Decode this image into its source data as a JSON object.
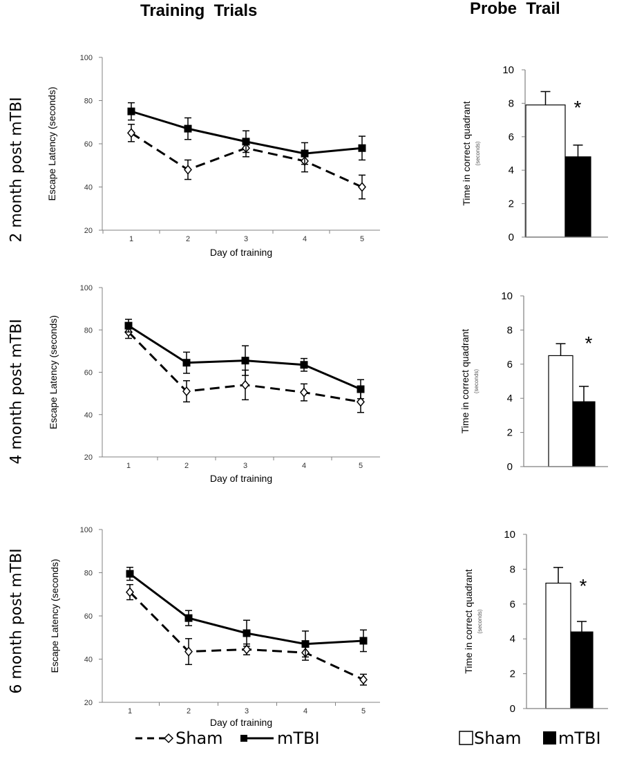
{
  "headers": {
    "training": "Training  Trials",
    "probe": "Probe  Trail"
  },
  "row_labels": [
    "2 month post mTBI",
    "4 month post mTBI",
    "6 month post mTBI"
  ],
  "legend_line": {
    "sham": "Sham",
    "mtbi": "mTBI"
  },
  "legend_bar": {
    "sham": "Sham",
    "mtbi": "mTBI"
  },
  "colors": {
    "sham_bar": "#ffffff",
    "mtbi_bar": "#000000",
    "axis": "#808080",
    "ink": "#000000"
  },
  "chart_data": [
    {
      "type": "line",
      "panel": "2 month post mTBI",
      "title": "",
      "xlabel": "Day of training",
      "ylabel": "Escape Latency (seconds)",
      "categories": [
        "1",
        "2",
        "3",
        "4",
        "5"
      ],
      "ylim": [
        20,
        100
      ],
      "yticks": [
        20,
        40,
        60,
        80,
        100
      ],
      "series": [
        {
          "name": "Sham",
          "values": [
            65,
            48,
            58,
            52,
            40
          ],
          "errors": [
            4,
            4.5,
            4,
            5,
            5.5
          ],
          "style": "dashed-open-diamond"
        },
        {
          "name": "mTBI",
          "values": [
            75,
            67,
            61,
            55.5,
            58
          ],
          "errors": [
            4,
            5,
            5,
            5,
            5.5
          ],
          "style": "solid-filled-square"
        }
      ]
    },
    {
      "type": "bar",
      "panel": "2 month post mTBI",
      "ylabel": "Time in correct quadrant",
      "ylabel_sub": "(seconds)",
      "categories": [
        "Sham",
        "mTBI"
      ],
      "values": [
        7.9,
        4.8
      ],
      "errors": [
        0.8,
        0.7
      ],
      "ylim": [
        0,
        10
      ],
      "yticks": [
        0,
        2,
        4,
        6,
        8,
        10
      ],
      "annotation": "*"
    },
    {
      "type": "line",
      "panel": "4 month post mTBI",
      "title": "",
      "xlabel": "Day of training",
      "ylabel": "Escape Latency (seconds)",
      "categories": [
        "1",
        "2",
        "3",
        "4",
        "5"
      ],
      "ylim": [
        20,
        100
      ],
      "yticks": [
        20,
        40,
        60,
        80,
        100
      ],
      "series": [
        {
          "name": "Sham",
          "values": [
            79,
            51,
            54,
            50.5,
            46
          ],
          "errors": [
            3,
            5,
            7,
            4,
            5
          ],
          "style": "dashed-open-diamond"
        },
        {
          "name": "mTBI",
          "values": [
            82,
            64.5,
            65.5,
            63.5,
            52
          ],
          "errors": [
            3,
            5,
            7,
            3,
            4.5
          ],
          "style": "solid-filled-square"
        }
      ]
    },
    {
      "type": "bar",
      "panel": "4 month post mTBI",
      "ylabel": "Time in correct quadrant",
      "ylabel_sub": "(seconds)",
      "categories": [
        "Sham",
        "mTBI"
      ],
      "values": [
        6.5,
        3.8
      ],
      "errors": [
        0.7,
        0.9
      ],
      "ylim": [
        0,
        10
      ],
      "yticks": [
        0,
        2,
        4,
        6,
        8,
        10
      ],
      "annotation": "*"
    },
    {
      "type": "line",
      "panel": "6 month post mTBI",
      "title": "",
      "xlabel": "Day of training",
      "ylabel": "Escape Latency (seconds)",
      "categories": [
        "1",
        "2",
        "3",
        "4",
        "5"
      ],
      "ylim": [
        20,
        100
      ],
      "yticks": [
        20,
        40,
        60,
        80,
        100
      ],
      "series": [
        {
          "name": "Sham",
          "values": [
            71,
            43.5,
            44.5,
            43,
            30.5
          ],
          "errors": [
            3.5,
            6,
            2.5,
            3.5,
            2.5
          ],
          "style": "dashed-open-diamond"
        },
        {
          "name": "mTBI",
          "values": [
            79.5,
            59,
            52,
            47,
            48.5
          ],
          "errors": [
            3,
            3.5,
            6,
            6,
            5
          ],
          "style": "solid-filled-square"
        }
      ]
    },
    {
      "type": "bar",
      "panel": "6 month post mTBI",
      "ylabel": "Time in correct quadrant",
      "ylabel_sub": "(seconds)",
      "categories": [
        "Sham",
        "mTBI"
      ],
      "values": [
        7.2,
        4.4
      ],
      "errors": [
        0.9,
        0.6
      ],
      "ylim": [
        0,
        10
      ],
      "yticks": [
        0,
        2,
        4,
        6,
        8,
        10
      ],
      "annotation": "*"
    }
  ]
}
